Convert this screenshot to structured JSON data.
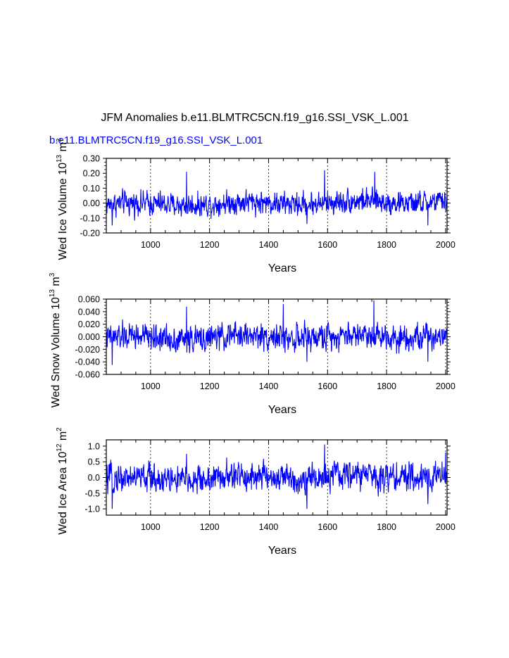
{
  "title": "JFM Anomalies b.e11.BLMTRC5CN.f19_g16.SSI_VSK_L.001",
  "subtitle": "b.e11.BLMTRC5CN.f19_g16.SSI_VSK_L.001",
  "subtitle_color": "#0000ff",
  "line_color": "#0000ff",
  "chart_data": [
    {
      "type": "line",
      "ylabel": "Wed Ice Volume 10",
      "ylabel_sup": "13",
      "ylabel_unit": "m",
      "ylabel_unit_sup": "3",
      "xlabel": "Years",
      "xlim": [
        850,
        2005
      ],
      "ylim": [
        -0.2,
        0.3
      ],
      "xticks": [
        "1000",
        "1200",
        "1400",
        "1600",
        "1800",
        "2000"
      ],
      "yticks": [
        "0.30",
        "0.20",
        "0.10",
        "0.00",
        "-0.10",
        "-0.20"
      ],
      "grid_x": [
        1000,
        1200,
        1400,
        1600,
        1800,
        2000
      ],
      "series": [
        {
          "x_start": 850,
          "x_end": 2005,
          "amplitude": 0.045,
          "extrema": [
            [
              1122,
              0.21
            ],
            [
              1590,
              0.22
            ],
            [
              1760,
              0.21
            ],
            [
              1940,
              -0.15
            ],
            [
              1530,
              -0.14
            ],
            [
              870,
              -0.15
            ]
          ]
        }
      ]
    },
    {
      "type": "line",
      "ylabel": "Wed Snow Volume 10",
      "ylabel_sup": "13",
      "ylabel_unit": "m",
      "ylabel_unit_sup": "3",
      "xlabel": "Years",
      "xlim": [
        850,
        2005
      ],
      "ylim": [
        -0.06,
        0.06
      ],
      "xticks": [
        "1000",
        "1200",
        "1400",
        "1600",
        "1800",
        "2000"
      ],
      "yticks": [
        "0.060",
        "0.040",
        "0.020",
        "0.000",
        "-0.020",
        "-0.040",
        "-0.060"
      ],
      "grid_x": [
        1000,
        1200,
        1400,
        1600,
        1800,
        2000
      ],
      "series": [
        {
          "x_start": 850,
          "x_end": 2005,
          "amplitude": 0.012,
          "extrema": [
            [
              1122,
              0.048
            ],
            [
              1450,
              0.052
            ],
            [
              1757,
              0.058
            ],
            [
              1940,
              -0.04
            ],
            [
              1530,
              -0.04
            ],
            [
              870,
              -0.045
            ]
          ]
        }
      ]
    },
    {
      "type": "line",
      "ylabel": "Wed Ice Area 10",
      "ylabel_sup": "12",
      "ylabel_unit": "m",
      "ylabel_unit_sup": "2",
      "xlabel": "Years",
      "xlim": [
        850,
        2005
      ],
      "ylim": [
        -1.2,
        1.2
      ],
      "xticks": [
        "1000",
        "1200",
        "1400",
        "1600",
        "1800",
        "2000"
      ],
      "yticks": [
        "1.0",
        "0.5",
        "0.0",
        "-0.5",
        "-1.0"
      ],
      "grid_x": [
        1000,
        1200,
        1400,
        1600,
        1800,
        2000
      ],
      "series": [
        {
          "x_start": 850,
          "x_end": 2005,
          "amplitude": 0.26,
          "extrema": [
            [
              1590,
              1.05
            ],
            [
              1122,
              0.75
            ],
            [
              1530,
              -1.0
            ],
            [
              870,
              -1.0
            ],
            [
              1940,
              -0.85
            ],
            [
              2000,
              0.8
            ]
          ]
        }
      ]
    }
  ]
}
